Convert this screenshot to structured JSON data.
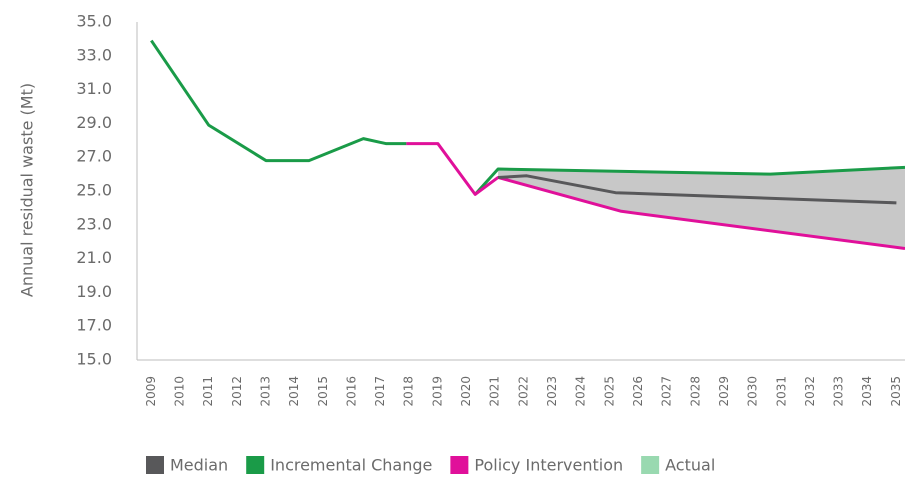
{
  "chart_data": {
    "type": "line",
    "y_label": "Annual residual waste (Mt)",
    "ylim": [
      15,
      35
    ],
    "yticks": [
      {
        "value": 15,
        "label": "15.0"
      },
      {
        "value": 17,
        "label": "17.0"
      },
      {
        "value": 19,
        "label": "19.0"
      },
      {
        "value": 21,
        "label": "21.0"
      },
      {
        "value": 23,
        "label": "23.0"
      },
      {
        "value": 25,
        "label": "25.0"
      },
      {
        "value": 27,
        "label": "27.0"
      },
      {
        "value": 29,
        "label": "29.0"
      },
      {
        "value": 31,
        "label": "31.0"
      },
      {
        "value": 33,
        "label": "33.0"
      },
      {
        "value": 35,
        "label": "35.0"
      }
    ],
    "xlim": [
      2008.5,
      2035.3
    ],
    "xticks": [
      2009,
      2010,
      2011,
      2012,
      2013,
      2014,
      2015,
      2016,
      2017,
      2018,
      2019,
      2020,
      2021,
      2022,
      2023,
      2024,
      2025,
      2026,
      2027,
      2028,
      2029,
      2030,
      2031,
      2032,
      2033,
      2034,
      2035
    ],
    "range_fill": "#c8c8c8",
    "series": [
      {
        "name": "Median",
        "color": "#58585a",
        "x": [
          2021.1,
          2022.1,
          2025.2,
          2035
        ],
        "values": [
          25.8,
          25.9,
          24.9,
          24.3
        ]
      },
      {
        "name": "Incremental Change",
        "color": "#1a9b48",
        "x": [
          2009,
          2011,
          2013,
          2014.5,
          2016.4,
          2017.2,
          2017.9,
          null,
          2020.3,
          2021.1,
          2030.6,
          2035.3
        ],
        "values": [
          33.9,
          28.9,
          26.8,
          26.8,
          28.1,
          27.8,
          27.8,
          null,
          24.8,
          26.3,
          26.0,
          26.4
        ]
      },
      {
        "name": "Policy Intervention",
        "color": "#e0109a",
        "x": [
          2017.9,
          2019,
          2020.3,
          2021.1,
          2025.4,
          2035.3
        ],
        "values": [
          27.8,
          27.8,
          24.8,
          25.8,
          23.8,
          21.6
        ]
      },
      {
        "name": "Actual",
        "color": "#99d9b0",
        "x": [],
        "values": []
      }
    ]
  }
}
